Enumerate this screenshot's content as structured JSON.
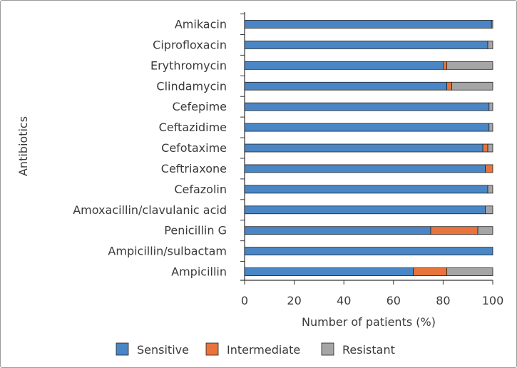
{
  "chart_data": {
    "type": "bar",
    "orientation": "horizontal",
    "stacked": true,
    "categories": [
      "Amikacin",
      "Ciprofloxacin",
      "Erythromycin",
      "Clindamycin",
      "Cefepime",
      "Ceftazidime",
      "Cefotaxime",
      "Ceftriaxone",
      "Cefazolin",
      "Amoxacillin/clavulanic acid",
      "Penicillin G",
      "Ampicillin/sulbactam",
      "Ampicillin"
    ],
    "series": [
      {
        "name": "Sensitive",
        "color": "#4a86c5",
        "values": [
          99.5,
          98,
          80,
          81.5,
          98.5,
          98.5,
          96,
          97,
          98,
          97,
          75,
          100,
          68
        ]
      },
      {
        "name": "Intermediate",
        "color": "#e8743b",
        "values": [
          0,
          0,
          1.5,
          2,
          0,
          0,
          2,
          3,
          0,
          0,
          19,
          0,
          13.5
        ]
      },
      {
        "name": "Resistant",
        "color": "#a5a5a5",
        "values": [
          0.5,
          2,
          18.5,
          16.5,
          1.5,
          1.5,
          2,
          0,
          2,
          3,
          6,
          0,
          18.5
        ]
      }
    ],
    "xlim": [
      0,
      100
    ],
    "xticks": [
      "0",
      "20",
      "40",
      "60",
      "80",
      "100"
    ],
    "xlabel": "Number of patients (%)",
    "ylabel": "Antibiotics",
    "legend_position": "bottom",
    "grid": false
  }
}
